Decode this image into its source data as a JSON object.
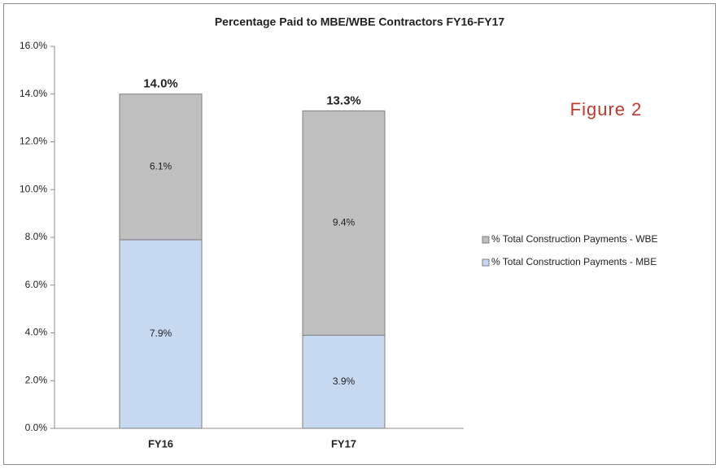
{
  "chart_data": {
    "type": "stacked_bar",
    "title": "Percentage Paid to MBE/WBE Contractors FY16-FY17",
    "annotation": "Figure 2",
    "categories": [
      "FY16",
      "FY17"
    ],
    "series": [
      {
        "name": "% Total Construction Payments - MBE",
        "color": "#c6d9f1",
        "values": [
          7.9,
          3.9
        ],
        "value_labels": [
          "7.9%",
          "3.9%"
        ]
      },
      {
        "name": "% Total Construction Payments - WBE",
        "color": "#bfbfbf",
        "values": [
          6.1,
          9.4
        ],
        "value_labels": [
          "6.1%",
          "9.4%"
        ]
      }
    ],
    "totals": {
      "values": [
        14.0,
        13.3
      ],
      "value_labels": [
        "14.0%",
        "13.3%"
      ]
    },
    "ylim": [
      0,
      16
    ],
    "yticks": [
      {
        "value": 0,
        "label": "0.0%"
      },
      {
        "value": 2,
        "label": "2.0%"
      },
      {
        "value": 4,
        "label": "4.0%"
      },
      {
        "value": 6,
        "label": "6.0%"
      },
      {
        "value": 8,
        "label": "8.0%"
      },
      {
        "value": 10,
        "label": "10.0%"
      },
      {
        "value": 12,
        "label": "12.0%"
      },
      {
        "value": 14,
        "label": "14.0%"
      },
      {
        "value": 16,
        "label": "16.0%"
      }
    ],
    "grid": false,
    "legend": "right"
  }
}
